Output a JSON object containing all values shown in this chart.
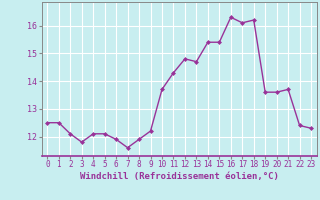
{
  "x": [
    0,
    1,
    2,
    3,
    4,
    5,
    6,
    7,
    8,
    9,
    10,
    11,
    12,
    13,
    14,
    15,
    16,
    17,
    18,
    19,
    20,
    21,
    22,
    23
  ],
  "y": [
    12.5,
    12.5,
    12.1,
    11.8,
    12.1,
    12.1,
    11.9,
    11.6,
    11.9,
    12.2,
    13.7,
    14.3,
    14.8,
    14.7,
    15.4,
    15.4,
    16.3,
    16.1,
    16.2,
    13.6,
    13.6,
    13.7,
    12.4,
    12.3
  ],
  "line_color": "#993399",
  "marker": "D",
  "marker_size": 2.0,
  "line_width": 1.0,
  "bg_color": "#c8eef0",
  "grid_color": "#ffffff",
  "tick_color": "#993399",
  "label_color": "#993399",
  "xlabel": "Windchill (Refroidissement éolien,°C)",
  "xlabel_fontsize": 6.5,
  "ylabel_ticks": [
    12,
    13,
    14,
    15,
    16
  ],
  "xlim": [
    -0.5,
    23.5
  ],
  "ylim": [
    11.3,
    16.85
  ],
  "xtick_labels": [
    "0",
    "1",
    "2",
    "3",
    "4",
    "5",
    "6",
    "7",
    "8",
    "9",
    "10",
    "11",
    "12",
    "13",
    "14",
    "15",
    "16",
    "17",
    "18",
    "19",
    "20",
    "21",
    "22",
    "23"
  ],
  "tick_fontsize": 5.5,
  "ytick_fontsize": 6.0,
  "spine_color": "#888888",
  "bottom_spine_color": "#993399"
}
